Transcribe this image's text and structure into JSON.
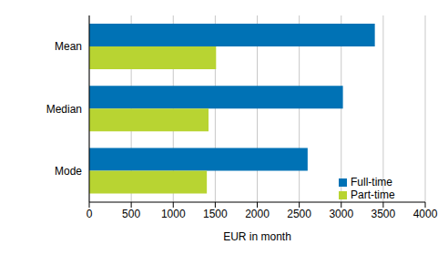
{
  "chart_data": {
    "type": "bar",
    "orientation": "horizontal",
    "categories": [
      "Mean",
      "Median",
      "Mode"
    ],
    "series": [
      {
        "name": "Full-time",
        "color": "#0072b5",
        "values": [
          3400,
          3020,
          2600
        ]
      },
      {
        "name": "Part-time",
        "color": "#b8d432",
        "values": [
          1510,
          1420,
          1400
        ]
      }
    ],
    "xlabel": "EUR in month",
    "xlim": [
      0,
      4000
    ],
    "xticks": [
      0,
      500,
      1000,
      1500,
      2000,
      2500,
      3000,
      3500,
      4000
    ],
    "grid": true,
    "legend": "lower right"
  }
}
